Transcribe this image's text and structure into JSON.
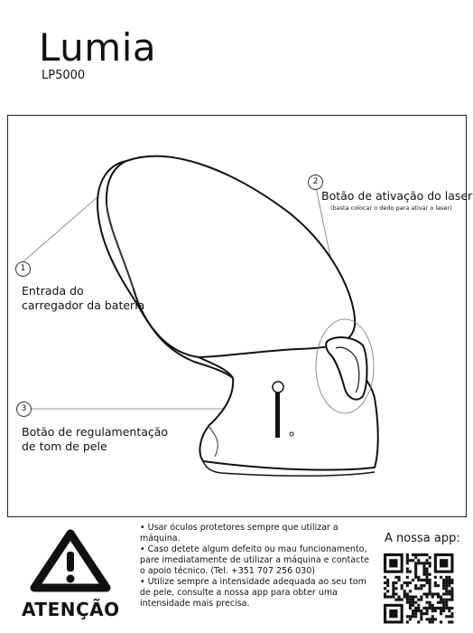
{
  "header": {
    "brand": "Lumia",
    "model": "LP5000"
  },
  "callouts": [
    {
      "num": "1",
      "label_line1": "Entrada do",
      "label_line2": "carregador da bateria"
    },
    {
      "num": "2",
      "label_line1": "Botão de ativação do laser",
      "sublabel": "(basta colocar o dedo para ativar o laser)"
    },
    {
      "num": "3",
      "label_line1": "Botão de regulamentação",
      "label_line2": "de tom de pele"
    }
  ],
  "warning": {
    "title": "ATENÇÃO",
    "items": [
      "• Usar óculos protetores sempre que utilizar a máquina.",
      "• Caso detete algum defeito ou mau funcionamento, pare imediatamente de utilizar a máquina e contacte o apoio técnico. (Tel. +351 707 256 030)",
      "• Utilize sempre a intensidade adequada ao seu tom de pele, consulte a nossa app para obter uma intensidade mais precisa."
    ]
  },
  "app": {
    "label": "A nossa app:"
  },
  "icons": {
    "warning": "warning-triangle-icon",
    "qr": "qr-code"
  }
}
